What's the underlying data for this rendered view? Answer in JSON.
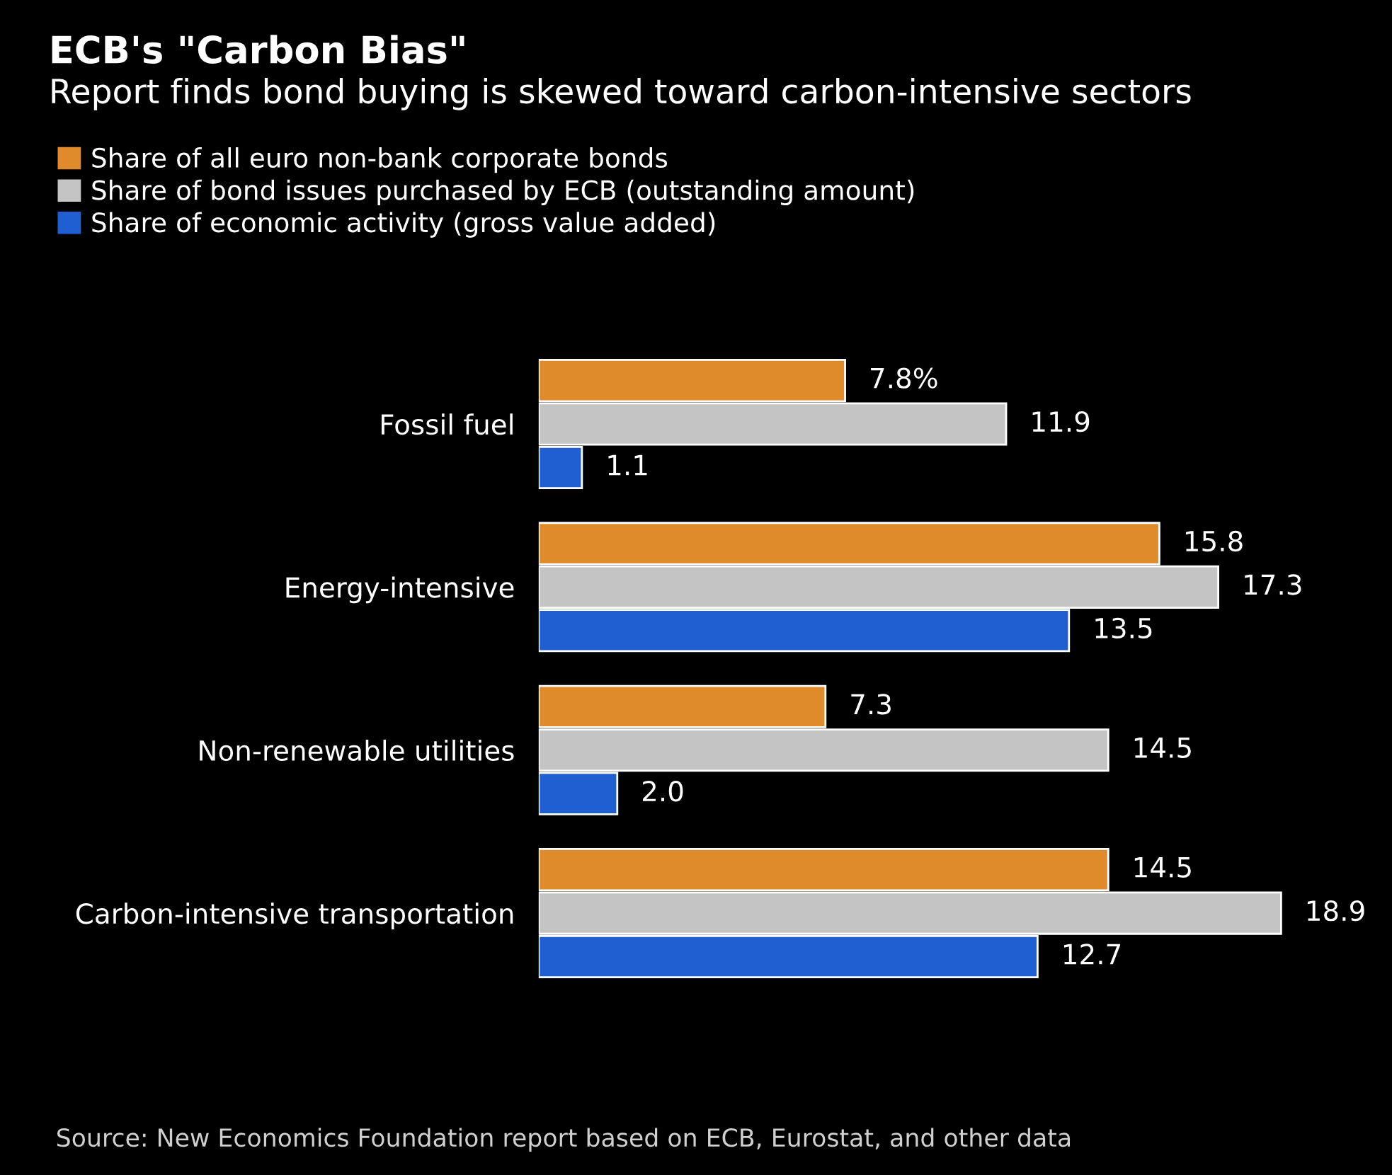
{
  "chart_data": {
    "type": "bar",
    "orientation": "horizontal",
    "title": "ECB's \"Carbon Bias\"",
    "subtitle": "Report finds bond buying is skewed toward carbon-intensive sectors",
    "categories": [
      "Fossil fuel",
      "Energy-intensive",
      "Non-renewable utilities",
      "Carbon-intensive transportation"
    ],
    "series": [
      {
        "name": "Share of all euro non-bank corporate bonds",
        "color": "#e08b2b",
        "values": [
          7.8,
          15.8,
          7.3,
          14.5
        ],
        "value_labels": [
          "7.8%",
          "15.8",
          "7.3",
          "14.5"
        ]
      },
      {
        "name": "Share of bond issues purchased by ECB (outstanding amount)",
        "color": "#c4c4c4",
        "values": [
          11.9,
          17.3,
          14.5,
          18.9
        ],
        "value_labels": [
          "11.9",
          "17.3",
          "14.5",
          "18.9"
        ]
      },
      {
        "name": "Share of economic activity (gross value added)",
        "color": "#1f5fd1",
        "values": [
          1.1,
          13.5,
          2.0,
          12.7
        ],
        "value_labels": [
          "1.1",
          "13.5",
          "2.0",
          "12.7"
        ]
      }
    ],
    "legend": "top left",
    "grid": false,
    "tick_labels": "y",
    "annotations": [
      "Source: New Economics Foundation report based on ECB, Eurostat, and other data"
    ]
  }
}
